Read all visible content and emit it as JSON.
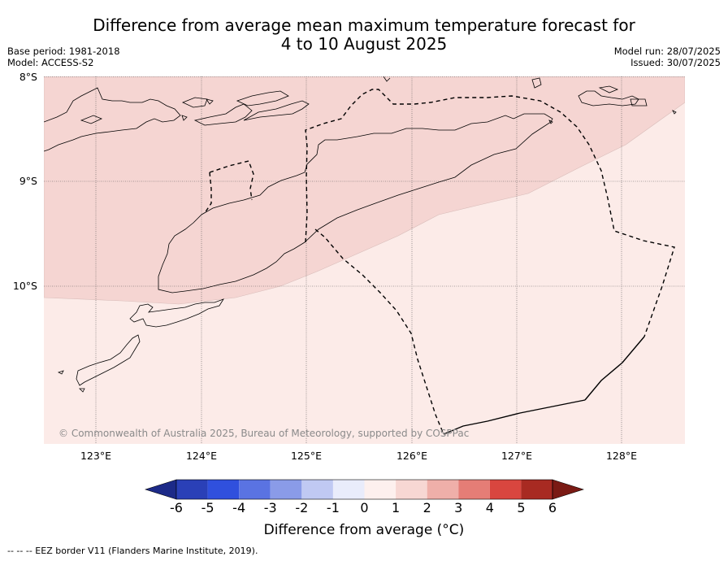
{
  "header": {
    "title_line1": "Difference from average mean maximum temperature forecast for",
    "title_line2": "4 to 10 August 2025",
    "base_period": "Base period: 1981-2018",
    "model": "Model: ACCESS-S2",
    "model_run": "Model run: 28/07/2025",
    "issued": "Issued: 30/07/2025"
  },
  "map": {
    "lat_labels": [
      "8°S",
      "9°S",
      "10°S"
    ],
    "lon_labels": [
      "123°E",
      "124°E",
      "125°E",
      "126°E",
      "127°E",
      "128°E"
    ],
    "copyright": "© Commonwealth of Australia 2025, Bureau of Meteorology, supported by COSPPac",
    "colors": {
      "anomaly_1_to_2": "#f5d5d2",
      "anomaly_0_to_1": "#fcebe8",
      "coastline": "#000000",
      "eez_border": "#000000",
      "grid": "#555555"
    }
  },
  "colorbar": {
    "ticks": [
      "-6",
      "-5",
      "-4",
      "-3",
      "-2",
      "-1",
      "0",
      "1",
      "2",
      "3",
      "4",
      "5",
      "6"
    ],
    "colors": [
      "#1c2a88",
      "#2a40b7",
      "#3050dd",
      "#5a73e2",
      "#8a9be8",
      "#c0c9f3",
      "#e9ecfb",
      "#fdf0ee",
      "#f7d7d3",
      "#efafa9",
      "#e57d76",
      "#d9463f",
      "#a82a22",
      "#7a1a14"
    ],
    "title": "Difference from average (°C)"
  },
  "footnote": "--  --  -- EEZ border V11 (Flanders Marine Institute, 2019)."
}
